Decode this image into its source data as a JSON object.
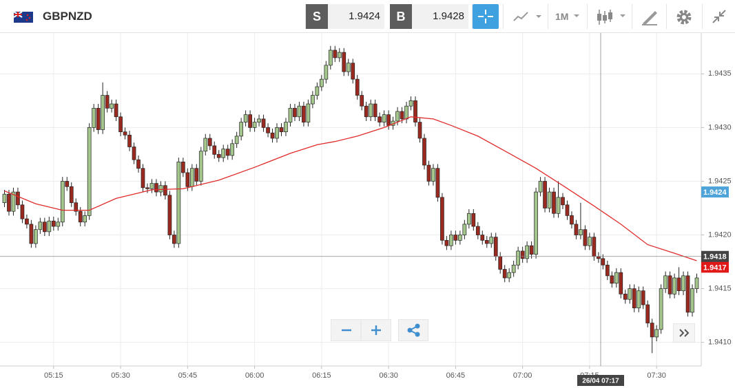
{
  "toolbar": {
    "symbol": "GBPNZD",
    "sell_label": "S",
    "sell": "1.9424",
    "buy_label": "B",
    "buy": "1.9428",
    "timeframe": "1M"
  },
  "chart_data": {
    "type": "candlestick",
    "x": [
      "05:04",
      "05:05",
      "05:06",
      "05:07",
      "05:08",
      "05:09",
      "05:10",
      "05:11",
      "05:12",
      "05:13",
      "05:14",
      "05:15",
      "05:16",
      "05:17",
      "05:18",
      "05:19",
      "05:20",
      "05:21",
      "05:22",
      "05:23",
      "05:24",
      "05:25",
      "05:26",
      "05:27",
      "05:28",
      "05:29",
      "05:30",
      "05:31",
      "05:32",
      "05:33",
      "05:34",
      "05:35",
      "05:36",
      "05:37",
      "05:38",
      "05:39",
      "05:40",
      "05:41",
      "05:42",
      "05:43",
      "05:44",
      "05:45",
      "05:46",
      "05:47",
      "05:48",
      "05:49",
      "05:50",
      "05:51",
      "05:52",
      "05:53",
      "05:54",
      "05:55",
      "05:56",
      "05:57",
      "05:58",
      "05:59",
      "06:00",
      "06:01",
      "06:02",
      "06:03",
      "06:04",
      "06:05",
      "06:06",
      "06:07",
      "06:08",
      "06:09",
      "06:10",
      "06:11",
      "06:12",
      "06:13",
      "06:14",
      "06:15",
      "06:16",
      "06:17",
      "06:18",
      "06:19",
      "06:20",
      "06:21",
      "06:22",
      "06:23",
      "06:24",
      "06:25",
      "06:26",
      "06:27",
      "06:28",
      "06:29",
      "06:30",
      "06:31",
      "06:32",
      "06:33",
      "06:34",
      "06:35",
      "06:36",
      "06:37",
      "06:38",
      "06:39",
      "06:40",
      "06:41",
      "06:42",
      "06:43",
      "06:44",
      "06:45",
      "06:46",
      "06:47",
      "06:48",
      "06:49",
      "06:50",
      "06:51",
      "06:52",
      "06:53",
      "06:54",
      "06:55",
      "06:56",
      "06:57",
      "06:58",
      "06:59",
      "07:00",
      "07:01",
      "07:02",
      "07:03",
      "07:04",
      "07:05",
      "07:06",
      "07:07",
      "07:08",
      "07:09",
      "07:10",
      "07:11",
      "07:12",
      "07:13",
      "07:14",
      "07:15",
      "07:16",
      "07:17",
      "07:18",
      "07:19",
      "07:20",
      "07:21",
      "07:22",
      "07:23",
      "07:24",
      "07:25",
      "07:26",
      "07:27",
      "07:28",
      "07:29",
      "07:30",
      "07:31",
      "07:32",
      "07:33",
      "07:34",
      "07:35",
      "07:36",
      "07:37",
      "07:38",
      "07:39"
    ],
    "open": [
      1.9423,
      1.94238,
      1.94222,
      1.9424,
      1.94228,
      1.94215,
      1.9421,
      1.94192,
      1.94205,
      1.94212,
      1.94203,
      1.94213,
      1.94208,
      1.94212,
      1.9425,
      1.94245,
      1.9423,
      1.94222,
      1.94212,
      1.94218,
      1.943,
      1.94318,
      1.94298,
      1.9433,
      1.94318,
      1.94322,
      1.9431,
      1.94296,
      1.94293,
      1.94282,
      1.9427,
      1.94262,
      1.94244,
      1.94243,
      1.94248,
      1.9424,
      1.94246,
      1.94237,
      1.942,
      1.94192,
      1.94268,
      1.94258,
      1.94245,
      1.94262,
      1.9425,
      1.94278,
      1.9429,
      1.94283,
      1.94275,
      1.94272,
      1.9428,
      1.94274,
      1.94285,
      1.94292,
      1.94305,
      1.94312,
      1.943,
      1.94305,
      1.94308,
      1.943,
      1.94295,
      1.9429,
      1.943,
      1.94296,
      1.94305,
      1.94318,
      1.9431,
      1.9432,
      1.94305,
      1.94322,
      1.9433,
      1.94338,
      1.94345,
      1.94358,
      1.94372,
      1.94365,
      1.9437,
      1.94352,
      1.9436,
      1.94345,
      1.9433,
      1.9432,
      1.9431,
      1.94322,
      1.9431,
      1.94305,
      1.94312,
      1.94302,
      1.94306,
      1.94315,
      1.94308,
      1.9432,
      1.94325,
      1.94305,
      1.9429,
      1.94265,
      1.9425,
      1.94262,
      1.94235,
      1.94195,
      1.9419,
      1.942,
      1.94195,
      1.942,
      1.9421,
      1.9422,
      1.94208,
      1.942,
      1.94195,
      1.94192,
      1.94198,
      1.9418,
      1.94168,
      1.9416,
      1.94165,
      1.94172,
      1.94185,
      1.94178,
      1.9419,
      1.94182,
      1.9424,
      1.9425,
      1.94225,
      1.9424,
      1.9422,
      1.94235,
      1.94228,
      1.94218,
      1.9421,
      1.942,
      1.94205,
      1.9419,
      1.94198,
      1.9418,
      1.94178,
      1.94172,
      1.94162,
      1.94155,
      1.94165,
      1.94145,
      1.9414,
      1.9415,
      1.94132,
      1.94148,
      1.94135,
      1.94118,
      1.94105,
      1.94112,
      1.9415,
      1.94162,
      1.94145,
      1.9416,
      1.94148,
      1.94162,
      1.94128,
      1.9415
    ],
    "high": [
      1.94242,
      1.94242,
      1.94244,
      1.94244,
      1.94232,
      1.94219,
      1.94214,
      1.94209,
      1.94216,
      1.94216,
      1.94217,
      1.94217,
      1.94216,
      1.94254,
      1.94254,
      1.94249,
      1.94234,
      1.94226,
      1.94222,
      1.94304,
      1.94322,
      1.94322,
      1.94342,
      1.94334,
      1.94326,
      1.94326,
      1.94314,
      1.943,
      1.94297,
      1.94286,
      1.94274,
      1.94266,
      1.94248,
      1.94252,
      1.94252,
      1.9425,
      1.9425,
      1.94241,
      1.94204,
      1.94272,
      1.94272,
      1.94262,
      1.94266,
      1.94266,
      1.94282,
      1.94294,
      1.94294,
      1.94287,
      1.94279,
      1.94284,
      1.94284,
      1.94289,
      1.94296,
      1.94309,
      1.94316,
      1.94316,
      1.94309,
      1.94312,
      1.94312,
      1.94304,
      1.94299,
      1.94304,
      1.94304,
      1.94309,
      1.94322,
      1.94322,
      1.94324,
      1.94324,
      1.94326,
      1.94334,
      1.94342,
      1.94349,
      1.94362,
      1.94376,
      1.94376,
      1.94374,
      1.94374,
      1.94364,
      1.94364,
      1.94349,
      1.94334,
      1.94324,
      1.94326,
      1.94326,
      1.94314,
      1.94316,
      1.94316,
      1.9431,
      1.94319,
      1.94319,
      1.94324,
      1.94329,
      1.94329,
      1.94309,
      1.94294,
      1.94269,
      1.94266,
      1.94266,
      1.94239,
      1.94199,
      1.94204,
      1.94204,
      1.94204,
      1.94214,
      1.94224,
      1.94224,
      1.94212,
      1.94204,
      1.94199,
      1.94202,
      1.94202,
      1.94184,
      1.94172,
      1.94169,
      1.94176,
      1.94189,
      1.94189,
      1.94194,
      1.94194,
      1.94244,
      1.94254,
      1.94254,
      1.94244,
      1.94244,
      1.9425,
      1.94239,
      1.94232,
      1.94222,
      1.94214,
      1.9423,
      1.94209,
      1.94202,
      1.94202,
      1.94184,
      1.94182,
      1.94176,
      1.94166,
      1.94169,
      1.94169,
      1.94149,
      1.94154,
      1.94154,
      1.94152,
      1.94152,
      1.94139,
      1.94122,
      1.94116,
      1.94154,
      1.94166,
      1.94166,
      1.94164,
      1.9417,
      1.94166,
      1.94166,
      1.94154,
      1.94164
    ],
    "low": [
      1.94226,
      1.94218,
      1.94218,
      1.94224,
      1.94211,
      1.94206,
      1.94188,
      1.94188,
      1.94201,
      1.94199,
      1.94199,
      1.94204,
      1.94204,
      1.94208,
      1.94241,
      1.94226,
      1.94218,
      1.94208,
      1.94208,
      1.94214,
      1.94296,
      1.94294,
      1.94294,
      1.94314,
      1.94314,
      1.94306,
      1.94292,
      1.94289,
      1.94278,
      1.94266,
      1.94258,
      1.9424,
      1.94239,
      1.94239,
      1.94236,
      1.94236,
      1.94233,
      1.94196,
      1.94188,
      1.94188,
      1.94254,
      1.94241,
      1.94241,
      1.94246,
      1.94246,
      1.94274,
      1.94279,
      1.94271,
      1.94268,
      1.94268,
      1.9427,
      1.9427,
      1.94281,
      1.94288,
      1.94301,
      1.94296,
      1.94296,
      1.94301,
      1.94296,
      1.94291,
      1.94286,
      1.94286,
      1.94292,
      1.94292,
      1.94301,
      1.94306,
      1.94306,
      1.94301,
      1.94301,
      1.94318,
      1.94326,
      1.94334,
      1.94341,
      1.94354,
      1.94361,
      1.94361,
      1.94348,
      1.94348,
      1.94341,
      1.94326,
      1.94316,
      1.94306,
      1.94306,
      1.94306,
      1.94301,
      1.94301,
      1.94298,
      1.94298,
      1.94302,
      1.94304,
      1.94304,
      1.94316,
      1.94301,
      1.94286,
      1.94261,
      1.94246,
      1.94246,
      1.94231,
      1.94191,
      1.94186,
      1.94186,
      1.94191,
      1.94191,
      1.94196,
      1.94206,
      1.94204,
      1.94196,
      1.94191,
      1.94188,
      1.94188,
      1.94176,
      1.94164,
      1.94156,
      1.94156,
      1.94161,
      1.94168,
      1.94174,
      1.94174,
      1.94178,
      1.94178,
      1.94236,
      1.94221,
      1.94221,
      1.94216,
      1.94216,
      1.94224,
      1.94214,
      1.94206,
      1.94196,
      1.94196,
      1.94186,
      1.94186,
      1.94176,
      1.94174,
      1.94168,
      1.94158,
      1.94151,
      1.94151,
      1.94141,
      1.94136,
      1.94136,
      1.94128,
      1.94128,
      1.94131,
      1.94114,
      1.9409,
      1.94101,
      1.94108,
      1.94146,
      1.94141,
      1.94141,
      1.94144,
      1.94144,
      1.94124,
      1.94124,
      1.94146
    ],
    "close": [
      1.94238,
      1.94222,
      1.9424,
      1.94228,
      1.94215,
      1.9421,
      1.94192,
      1.94205,
      1.94212,
      1.94203,
      1.94213,
      1.94208,
      1.94212,
      1.9425,
      1.94245,
      1.9423,
      1.94222,
      1.94212,
      1.94218,
      1.943,
      1.94318,
      1.94298,
      1.9433,
      1.94318,
      1.94322,
      1.9431,
      1.94296,
      1.94293,
      1.94282,
      1.9427,
      1.94262,
      1.94244,
      1.94243,
      1.94248,
      1.9424,
      1.94246,
      1.94237,
      1.942,
      1.94192,
      1.94268,
      1.94258,
      1.94245,
      1.94262,
      1.9425,
      1.94278,
      1.9429,
      1.94283,
      1.94275,
      1.94272,
      1.9428,
      1.94274,
      1.94285,
      1.94292,
      1.94305,
      1.94312,
      1.943,
      1.94305,
      1.94308,
      1.943,
      1.94295,
      1.9429,
      1.943,
      1.94296,
      1.94305,
      1.94318,
      1.9431,
      1.9432,
      1.94305,
      1.94322,
      1.9433,
      1.94338,
      1.94345,
      1.94358,
      1.94372,
      1.94365,
      1.9437,
      1.94352,
      1.9436,
      1.94345,
      1.9433,
      1.9432,
      1.9431,
      1.94322,
      1.9431,
      1.94305,
      1.94312,
      1.94302,
      1.94306,
      1.94315,
      1.94308,
      1.9432,
      1.94325,
      1.94305,
      1.9429,
      1.94265,
      1.9425,
      1.94262,
      1.94235,
      1.94195,
      1.9419,
      1.942,
      1.94195,
      1.942,
      1.9421,
      1.9422,
      1.94208,
      1.942,
      1.94195,
      1.94192,
      1.94198,
      1.9418,
      1.94168,
      1.9416,
      1.94165,
      1.94172,
      1.94185,
      1.94178,
      1.9419,
      1.94182,
      1.9424,
      1.9425,
      1.94225,
      1.9424,
      1.9422,
      1.94235,
      1.94228,
      1.94218,
      1.9421,
      1.942,
      1.94205,
      1.9419,
      1.94198,
      1.9418,
      1.94178,
      1.94172,
      1.94162,
      1.94155,
      1.94165,
      1.94145,
      1.9414,
      1.9415,
      1.94132,
      1.94148,
      1.94135,
      1.94118,
      1.94105,
      1.94112,
      1.9415,
      1.94162,
      1.94145,
      1.9416,
      1.94148,
      1.94162,
      1.94128,
      1.9415,
      1.9416
    ],
    "up_color": "#a4c68c",
    "down_color": "#9a2a20",
    "overlay": {
      "type": "line",
      "color": "#e02a2a",
      "x": [
        "05:04",
        "05:11",
        "05:17",
        "05:23",
        "05:29",
        "05:37",
        "05:44",
        "05:52",
        "06:00",
        "06:08",
        "06:14",
        "06:18",
        "06:23",
        "06:29",
        "06:35",
        "06:40",
        "06:44",
        "06:50",
        "06:57",
        "07:03",
        "07:09",
        "07:16",
        "07:22",
        "07:28",
        "07:34",
        "07:39"
      ],
      "values": [
        1.94241,
        1.94229,
        1.94223,
        1.94223,
        1.94234,
        1.94242,
        1.94243,
        1.94251,
        1.94263,
        1.94276,
        1.94284,
        1.94287,
        1.94292,
        1.943,
        1.9431,
        1.94308,
        1.94302,
        1.94292,
        1.94276,
        1.94262,
        1.94246,
        1.94227,
        1.9421,
        1.94191,
        1.94183,
        1.94176
      ]
    },
    "xlim": [
      "05:03",
      "07:40"
    ],
    "xticks": [
      "05:15",
      "05:30",
      "05:45",
      "06:00",
      "06:15",
      "06:30",
      "06:45",
      "07:00",
      "07:15",
      "07:30"
    ],
    "ylim": [
      1.94078,
      1.94388
    ],
    "yticks": [
      {
        "value": 1.941,
        "label": "1.9410"
      },
      1.9415,
      {
        "value": 1.942,
        "label": "1.9420"
      },
      1.9425,
      {
        "value": 1.943,
        "label": "1.9430"
      },
      1.9435
    ],
    "grid": true,
    "price_markers": [
      {
        "value": 1.9424,
        "color": "#4ea4d8"
      },
      {
        "value": 1.9417,
        "color": "#e01818"
      }
    ],
    "crosshair": {
      "value": 1.9418,
      "label": "26/04 07:17",
      "color": "#444444"
    }
  }
}
